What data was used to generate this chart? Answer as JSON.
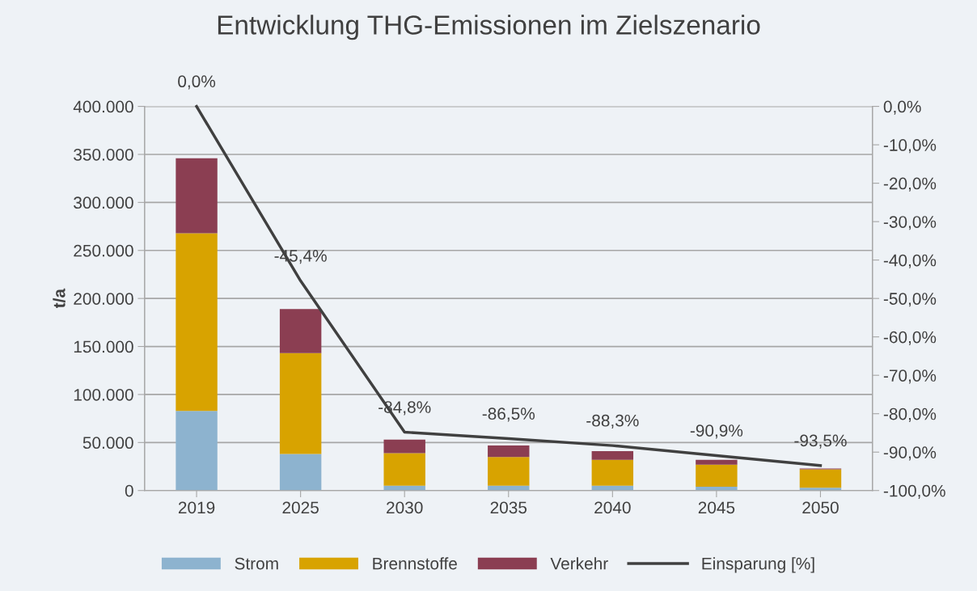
{
  "chart_data": {
    "type": "bar",
    "title": "Entwicklung THG-Emissionen im Zielszenario",
    "ylabel": "t/a",
    "stacked": true,
    "categories": [
      "2019",
      "2025",
      "2030",
      "2035",
      "2040",
      "2045",
      "2050"
    ],
    "series": [
      {
        "name": "Strom",
        "color": "#8db3cf",
        "values": [
          83000,
          38000,
          5000,
          5000,
          5000,
          4000,
          3000
        ]
      },
      {
        "name": "Brennstoffe",
        "color": "#d8a300",
        "values": [
          185000,
          105000,
          34000,
          30000,
          27000,
          23000,
          19000
        ]
      },
      {
        "name": "Verkehr",
        "color": "#8b3e52",
        "values": [
          78000,
          46000,
          14000,
          12000,
          9000,
          5000,
          1000
        ]
      },
      {
        "name": "Einsparung [%]",
        "type": "line",
        "axis": "y2",
        "color": "#404040",
        "values": [
          0.0,
          -45.4,
          -84.8,
          -86.5,
          -88.3,
          -90.9,
          -93.5
        ],
        "value_labels": [
          "0,0%",
          "-45,4%",
          "-84,8%",
          "-86,5%",
          "-88,3%",
          "-90,9%",
          "-93,5%"
        ]
      }
    ],
    "ylim": [
      0,
      400000
    ],
    "yticks": [
      {
        "value": 0,
        "label": "0"
      },
      {
        "value": 50000,
        "label": "50.000"
      },
      {
        "value": 100000,
        "label": "100.000"
      },
      {
        "value": 150000,
        "label": "150.000"
      },
      {
        "value": 200000,
        "label": "200.000"
      },
      {
        "value": 250000,
        "label": "250.000"
      },
      {
        "value": 300000,
        "label": "300.000"
      },
      {
        "value": 350000,
        "label": "350.000"
      },
      {
        "value": 400000,
        "label": "400.000"
      }
    ],
    "y2lim": [
      -100,
      0
    ],
    "y2ticks": [
      {
        "value": -100,
        "label": "-100,0%"
      },
      {
        "value": -90,
        "label": "-90,0%"
      },
      {
        "value": -80,
        "label": "-80,0%"
      },
      {
        "value": -70,
        "label": "-70,0%"
      },
      {
        "value": -60,
        "label": "-60,0%"
      },
      {
        "value": -50,
        "label": "-50,0%"
      },
      {
        "value": -40,
        "label": "-40,0%"
      },
      {
        "value": -30,
        "label": "-30,0%"
      },
      {
        "value": -20,
        "label": "-20,0%"
      },
      {
        "value": -10,
        "label": "-10,0%"
      },
      {
        "value": 0,
        "label": "0,0%"
      }
    ],
    "grid": "y",
    "legend": "bottom"
  }
}
